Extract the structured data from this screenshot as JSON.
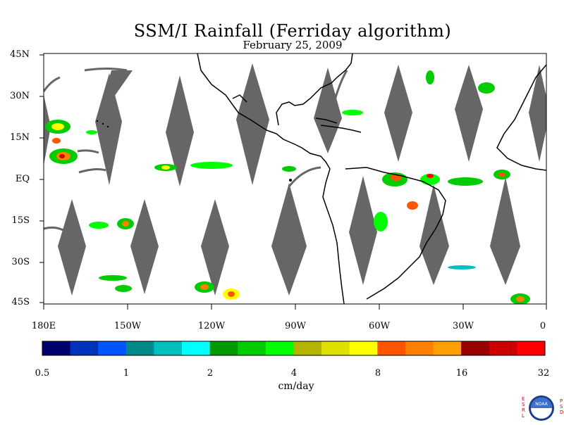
{
  "title": "SSM/I Rainfall (Ferriday algorithm)",
  "subtitle": "February 25, 2009",
  "map": {
    "lat_labels": [
      "45N",
      "30N",
      "15N",
      "EQ",
      "15S",
      "30S",
      "45S"
    ],
    "lon_labels": [
      "180E",
      "150W",
      "120W",
      "90W",
      "60W",
      "30W",
      "0"
    ],
    "extent": {
      "lon_min": -180,
      "lon_max": 0,
      "lat_min": -45,
      "lat_max": 45
    },
    "colors": {
      "no_data_swath_gap": "#666666",
      "coastline": "#000000",
      "background": "#ffffff"
    }
  },
  "colorbar": {
    "unit_label": "cm/day",
    "tick_labels": [
      "0.5",
      "1",
      "2",
      "4",
      "8",
      "16",
      "32"
    ],
    "colors": [
      "#00006e",
      "#0033bb",
      "#0055ff",
      "#008a8a",
      "#00bfbf",
      "#00ffff",
      "#009900",
      "#00cc00",
      "#00ff00",
      "#b3b300",
      "#e0e000",
      "#ffff00",
      "#ff5500",
      "#ff8000",
      "#ffa000",
      "#990000",
      "#cc0000",
      "#ff0000"
    ]
  },
  "logo": {
    "left_letters": [
      "E",
      "S",
      "R",
      "L"
    ],
    "right_letters": [
      "P",
      "S",
      "D"
    ],
    "badge": "NOAA"
  }
}
